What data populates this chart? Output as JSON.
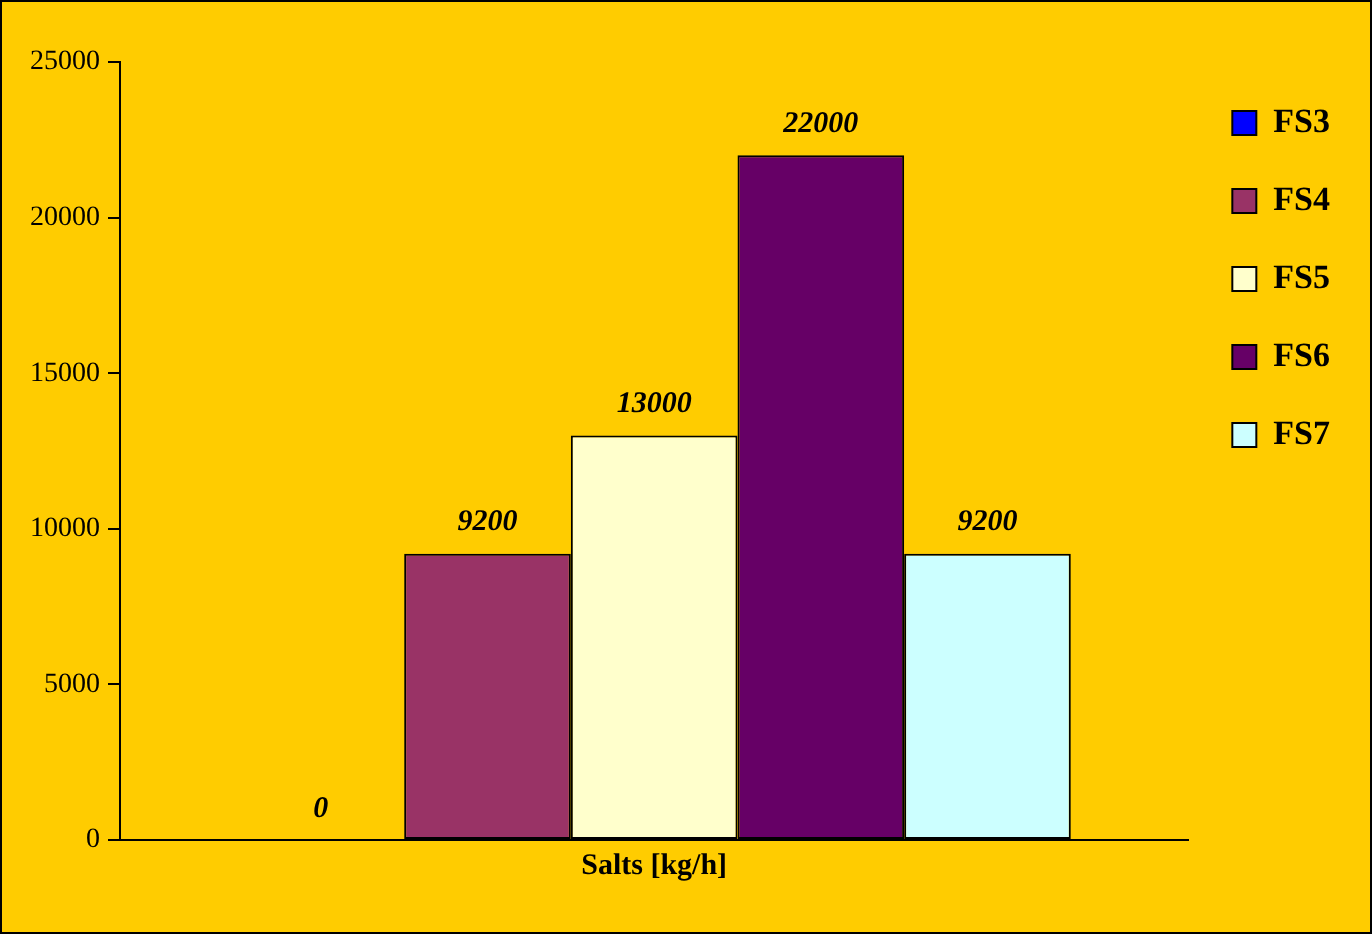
{
  "chart_data": {
    "type": "bar",
    "xlabel": "Salts [kg/h]",
    "categories": [
      null
    ],
    "series": [
      {
        "name": "FS3",
        "color": "#0000ff",
        "values": [
          0
        ],
        "value_labels": [
          null
        ]
      },
      {
        "name": "FS4",
        "color": "#993366",
        "values": [
          9200
        ],
        "value_labels": [
          "9200"
        ]
      },
      {
        "name": "FS5",
        "color": "#ffffcc",
        "values": [
          13000
        ],
        "value_labels": [
          "13000"
        ]
      },
      {
        "name": "FS6",
        "color": "#660066",
        "values": [
          22000
        ],
        "value_labels": [
          "22000"
        ]
      },
      {
        "name": "FS7",
        "color": "#ccffff",
        "values": [
          9200
        ],
        "value_labels": [
          "9200"
        ]
      }
    ],
    "annotations": [
      "0"
    ],
    "ylim": [
      0,
      25000
    ],
    "yticks": [
      0,
      5000,
      10000,
      15000,
      20000,
      25000
    ],
    "grid": false,
    "legend": "right"
  }
}
